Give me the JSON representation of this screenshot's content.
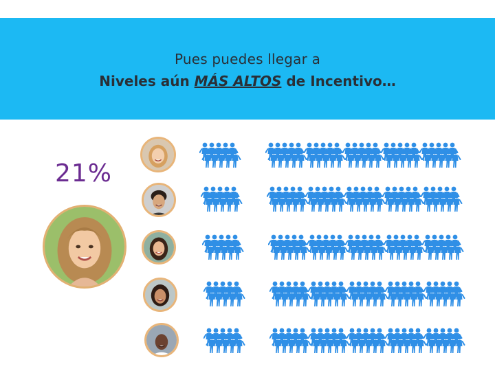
{
  "banner": {
    "line1": "Pues puedes llegar a",
    "line2_before": "Niveles aún ",
    "line2_emphasis": "MÁS ALTOS",
    "line2_after": " de Incentivo…",
    "background_color": "#1cb9f3"
  },
  "stat": {
    "percent": "21%",
    "color": "#6b2c91"
  },
  "icons": {
    "main_avatar": "woman-portrait-icon",
    "row_avatar": "person-portrait-icon",
    "figure": "people-group-icon"
  },
  "figure_color": "#2f8fe6"
}
